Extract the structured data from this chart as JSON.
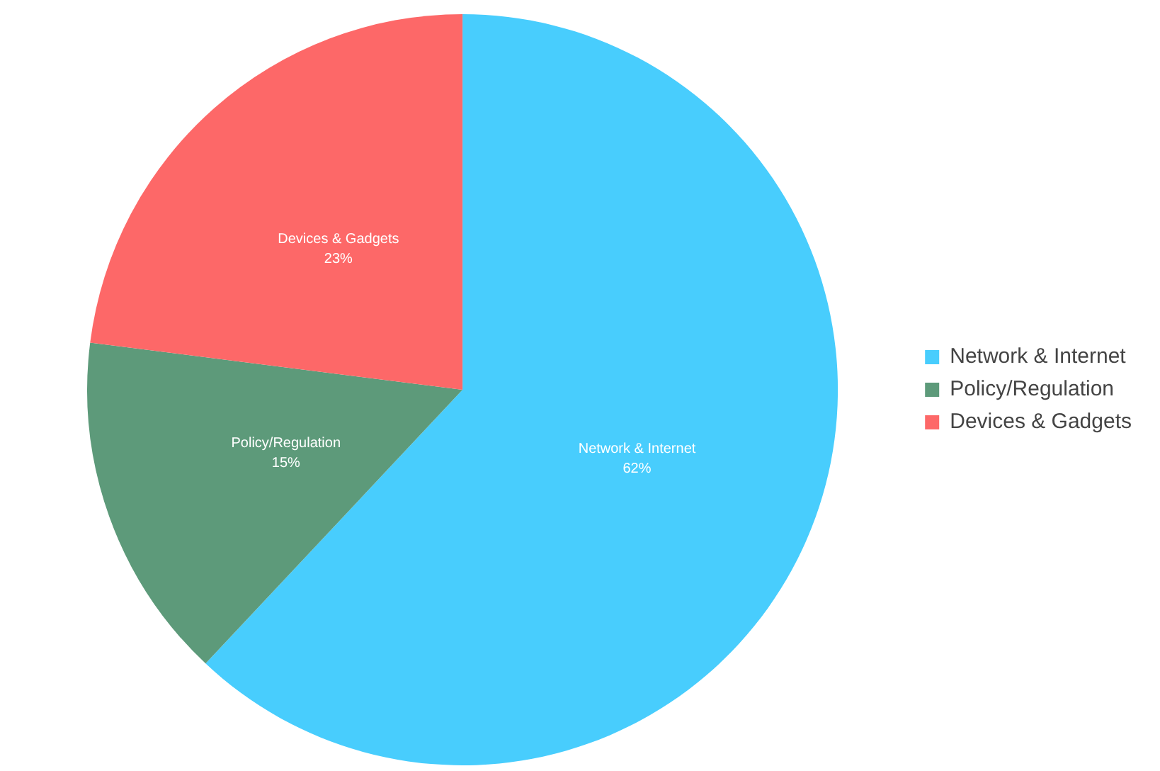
{
  "chart_data": {
    "type": "pie",
    "categories": [
      "Network & Internet",
      "Policy/Regulation",
      "Devices & Gadgets"
    ],
    "values": [
      62,
      15,
      23
    ],
    "colors": [
      "#48cdfd",
      "#5d9a7a",
      "#fd6868"
    ],
    "value_labels": [
      "62%",
      "15%",
      "23%"
    ],
    "legend": "right"
  }
}
